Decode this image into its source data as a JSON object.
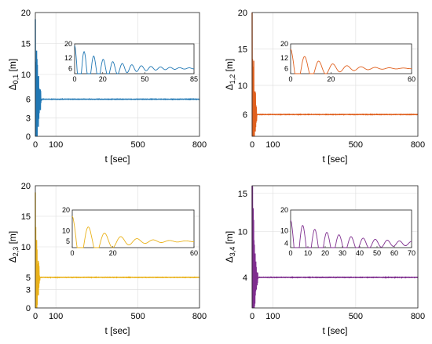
{
  "colors": {
    "panel_0_1": "#1f77b4",
    "panel_1_2": "#e0601e",
    "panel_2_3": "#eab21a",
    "panel_3_4": "#7e2d8e"
  },
  "chart_data": [
    {
      "type": "line",
      "ylabel": {
        "main": "Δ",
        "sub": "0,1",
        "unit": " [m]"
      },
      "xlabel": "t [sec]",
      "xlim": [
        0,
        800
      ],
      "ylim": [
        0,
        20
      ],
      "xticks": [
        0,
        100,
        500,
        800
      ],
      "xtick_labels": [
        "0",
        "100",
        "500",
        "800"
      ],
      "yticks": [
        0,
        3,
        6,
        10,
        15,
        20
      ],
      "ytick_labels": [
        "0",
        "3",
        "6",
        "10",
        "15",
        "20"
      ],
      "series": [
        {
          "color": "#1f77b4",
          "initial": 19,
          "final": 6,
          "decay": 0.08,
          "period": 1.6,
          "noise_until": 30
        }
      ],
      "inset": {
        "xlim": [
          0,
          85
        ],
        "ylim": [
          3,
          20
        ],
        "xticks": [
          0,
          20,
          50,
          85
        ],
        "xtick_labels": [
          "0",
          "20",
          "50",
          "85"
        ],
        "yticks": [
          6,
          12,
          20
        ],
        "ytick_labels": [
          "6",
          "12",
          "20"
        ],
        "initial": 19,
        "final": 6,
        "decay": 0.045,
        "period": 6.8
      }
    },
    {
      "type": "line",
      "ylabel": {
        "main": "Δ",
        "sub": "1,2",
        "unit": " [m]"
      },
      "xlabel": "t [sec]",
      "xlim": [
        0,
        800
      ],
      "ylim": [
        3,
        20
      ],
      "xticks": [
        0,
        100,
        500,
        800
      ],
      "xtick_labels": [
        "0",
        "100",
        "500",
        "800"
      ],
      "yticks": [
        6,
        10,
        15,
        20
      ],
      "ytick_labels": [
        "6",
        "10",
        "15",
        "20"
      ],
      "series": [
        {
          "color": "#e0601e",
          "initial": 18,
          "final": 6,
          "decay": 0.09,
          "period": 1.6,
          "noise_until": 22
        }
      ],
      "inset": {
        "xlim": [
          0,
          60
        ],
        "ylim": [
          3,
          20
        ],
        "xticks": [
          0,
          20,
          60
        ],
        "xtick_labels": [
          "0",
          "20",
          "60"
        ],
        "yticks": [
          6,
          12,
          20
        ],
        "ytick_labels": [
          "6",
          "12",
          "20"
        ],
        "initial": 17,
        "final": 6,
        "decay": 0.07,
        "period": 7
      }
    },
    {
      "type": "line",
      "ylabel": {
        "main": "Δ",
        "sub": "2,3",
        "unit": " [m]"
      },
      "xlabel": "t [sec]",
      "xlim": [
        0,
        800
      ],
      "ylim": [
        0,
        20
      ],
      "xticks": [
        0,
        100,
        500,
        800
      ],
      "xtick_labels": [
        "0",
        "100",
        "500",
        "800"
      ],
      "yticks": [
        0,
        3,
        5,
        10,
        15,
        20
      ],
      "ytick_labels": [
        "0",
        "3",
        "5",
        "10",
        "15",
        "20"
      ],
      "series": [
        {
          "color": "#eab21a",
          "initial": 17.5,
          "final": 5,
          "decay": 0.1,
          "period": 2,
          "noise_until": 22
        }
      ],
      "inset": {
        "xlim": [
          0,
          60
        ],
        "ylim": [
          2,
          20
        ],
        "xticks": [
          0,
          20,
          60
        ],
        "xtick_labels": [
          "0",
          "20",
          "60"
        ],
        "yticks": [
          5,
          10,
          20
        ],
        "ytick_labels": [
          "5",
          "10",
          "20"
        ],
        "initial": 17,
        "final": 5,
        "decay": 0.07,
        "period": 8
      }
    },
    {
      "type": "line",
      "ylabel": {
        "main": "Δ",
        "sub": "3,4",
        "unit": " [m]"
      },
      "xlabel": "t [sec]",
      "xlim": [
        0,
        800
      ],
      "ylim": [
        0,
        16
      ],
      "xticks": [
        0,
        100,
        500,
        800
      ],
      "xtick_labels": [
        "0",
        "100",
        "500",
        "800"
      ],
      "yticks": [
        4,
        10,
        15
      ],
      "ytick_labels": [
        "4",
        "10",
        "15"
      ],
      "series": [
        {
          "color": "#7e2d8e",
          "initial": 16,
          "final": 4,
          "decay": 0.09,
          "period": 1.8,
          "noise_until": 28
        }
      ],
      "inset": {
        "xlim": [
          0,
          70
        ],
        "ylim": [
          2,
          20
        ],
        "xticks": [
          0,
          10,
          20,
          30,
          40,
          50,
          60,
          70
        ],
        "xtick_labels": [
          "0",
          "10",
          "20",
          "30",
          "40",
          "50",
          "60",
          "70"
        ],
        "yticks": [
          4,
          10,
          20
        ],
        "ytick_labels": [
          "4",
          "10",
          "20"
        ],
        "initial": 15,
        "final": 4,
        "decay": 0.035,
        "period": 7
      }
    }
  ]
}
